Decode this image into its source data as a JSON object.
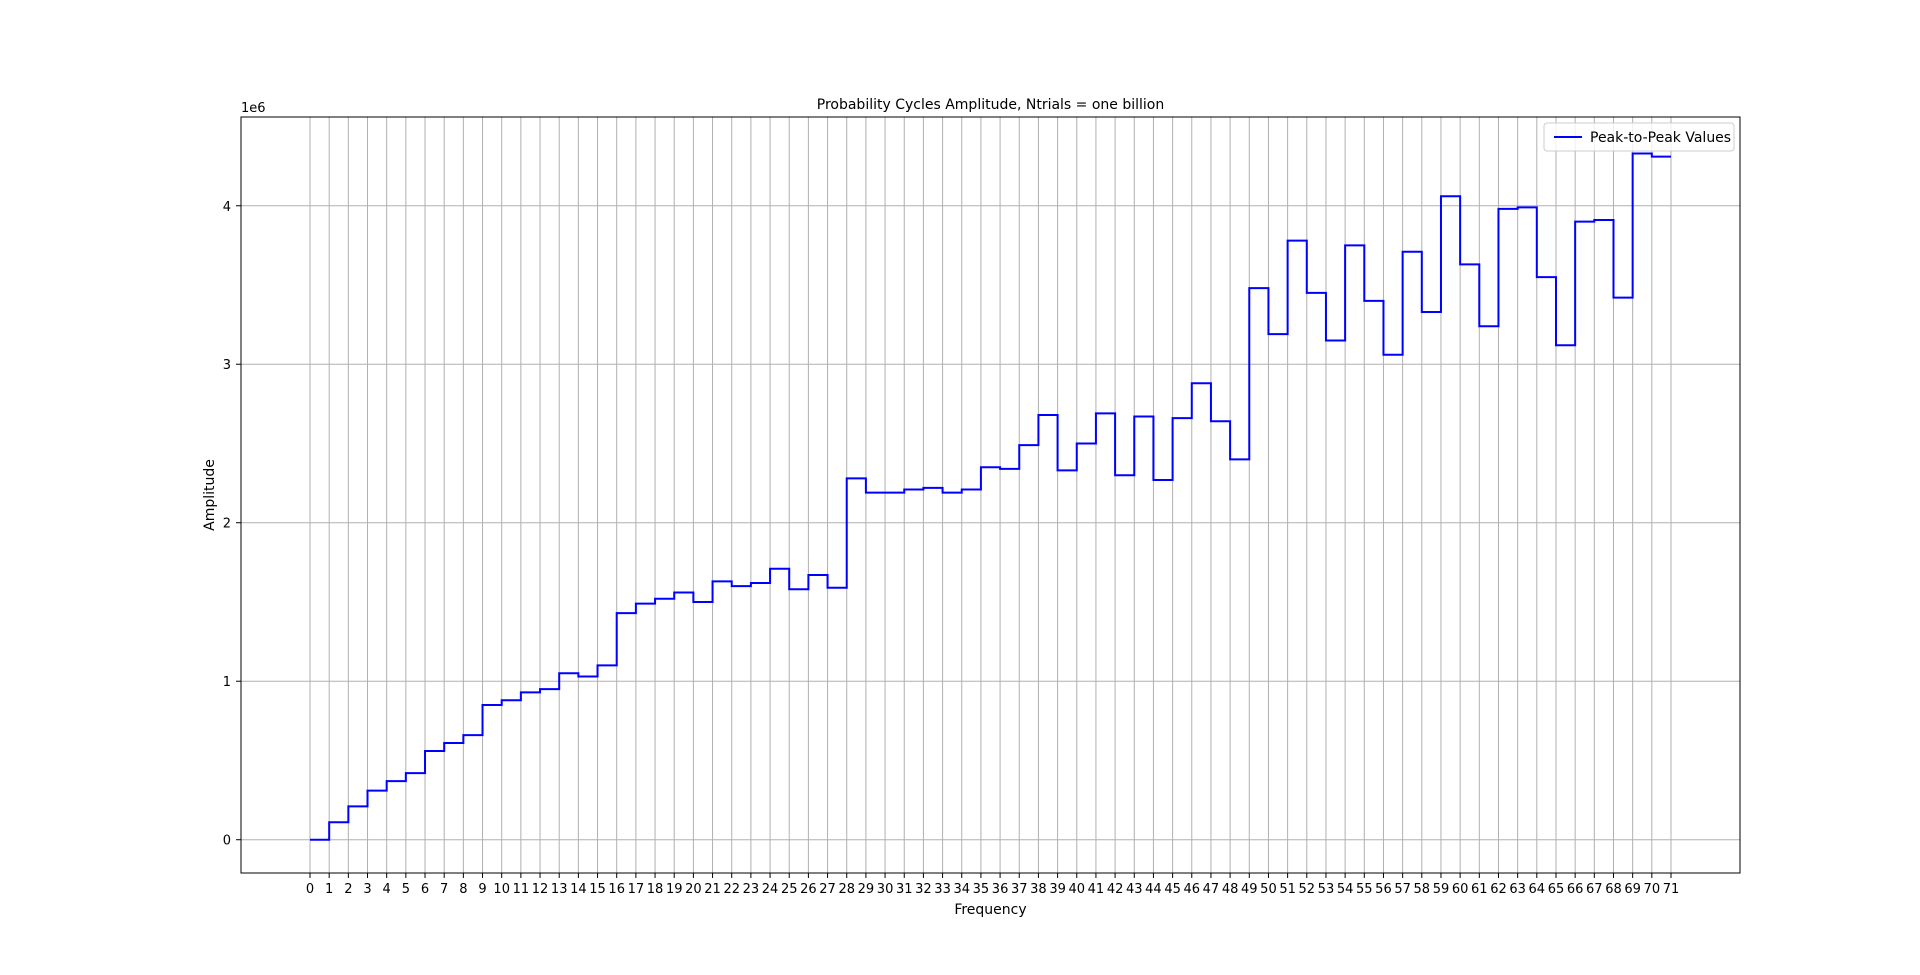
{
  "chart_data": {
    "type": "line",
    "drawstyle": "steps-post",
    "title": "Probability Cycles Amplitude, Ntrials = one billion",
    "xlabel": "Frequency",
    "ylabel": "Amplitude",
    "y_offset_label": "1e6",
    "y_scale_divisor": 1000000,
    "xlim": [
      -3.6,
      74.6
    ],
    "ylim": [
      -210000,
      4560000
    ],
    "grid": true,
    "legend_position": "top-right",
    "x_ticks": [
      0,
      1,
      2,
      3,
      4,
      5,
      6,
      7,
      8,
      9,
      10,
      11,
      12,
      13,
      14,
      15,
      16,
      17,
      18,
      19,
      20,
      21,
      22,
      23,
      24,
      25,
      26,
      27,
      28,
      29,
      30,
      31,
      32,
      33,
      34,
      35,
      36,
      37,
      38,
      39,
      40,
      41,
      42,
      43,
      44,
      45,
      46,
      47,
      48,
      49,
      50,
      51,
      52,
      53,
      54,
      55,
      56,
      57,
      58,
      59,
      60,
      61,
      62,
      63,
      64,
      65,
      66,
      67,
      68,
      69,
      70,
      71
    ],
    "y_ticks": [
      0,
      1000000,
      2000000,
      3000000,
      4000000
    ],
    "y_tick_labels": [
      "0",
      "1",
      "2",
      "3",
      "4"
    ],
    "series": [
      {
        "name": "Peak-to-Peak Values",
        "color": "#0000ff",
        "x": [
          0,
          1,
          2,
          3,
          4,
          5,
          6,
          7,
          8,
          9,
          10,
          11,
          12,
          13,
          14,
          15,
          16,
          17,
          18,
          19,
          20,
          21,
          22,
          23,
          24,
          25,
          26,
          27,
          28,
          29,
          30,
          31,
          32,
          33,
          34,
          35,
          36,
          37,
          38,
          39,
          40,
          41,
          42,
          43,
          44,
          45,
          46,
          47,
          48,
          49,
          50,
          51,
          52,
          53,
          54,
          55,
          56,
          57,
          58,
          59,
          60,
          61,
          62,
          63,
          64,
          65,
          66,
          67,
          68,
          69,
          70,
          71
        ],
        "y": [
          0,
          110000,
          210000,
          310000,
          370000,
          420000,
          560000,
          610000,
          660000,
          850000,
          880000,
          930000,
          950000,
          1050000,
          1030000,
          1100000,
          1430000,
          1490000,
          1520000,
          1560000,
          1500000,
          1630000,
          1600000,
          1620000,
          1710000,
          1580000,
          1670000,
          1590000,
          2280000,
          2190000,
          2190000,
          2210000,
          2220000,
          2190000,
          2210000,
          2350000,
          2340000,
          2490000,
          2680000,
          2330000,
          2500000,
          2690000,
          2300000,
          2670000,
          2270000,
          2660000,
          2880000,
          2640000,
          2400000,
          3480000,
          3190000,
          3780000,
          3450000,
          3150000,
          3750000,
          3400000,
          3060000,
          3710000,
          3330000,
          4060000,
          3630000,
          3240000,
          3980000,
          3990000,
          3550000,
          3120000,
          3900000,
          3910000,
          3420000,
          4330000,
          4310000,
          4310000
        ]
      }
    ]
  }
}
